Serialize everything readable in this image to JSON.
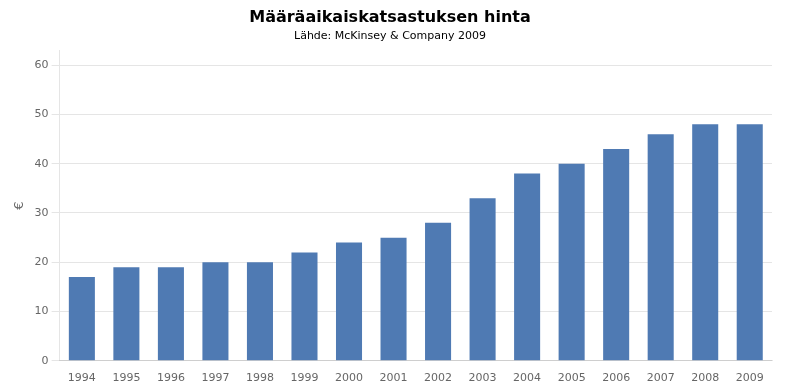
{
  "chart_data": {
    "type": "bar",
    "title": "Määräaikaiskatsastuksen hinta",
    "subtitle": "Lähde: McKinsey & Company 2009",
    "ylabel": "€",
    "categories": [
      1994,
      1995,
      1996,
      1997,
      1998,
      1999,
      2000,
      2001,
      2002,
      2003,
      2004,
      2005,
      2006,
      2007,
      2008,
      2009
    ],
    "values": [
      17,
      19,
      19,
      20,
      20,
      22,
      24,
      25,
      28,
      33,
      38,
      40,
      43,
      46,
      48,
      48
    ],
    "color": "#4f7ab3",
    "ylim": [
      0,
      63
    ],
    "yticks": [
      0,
      10,
      20,
      30,
      40,
      50,
      60
    ],
    "grid": true
  }
}
